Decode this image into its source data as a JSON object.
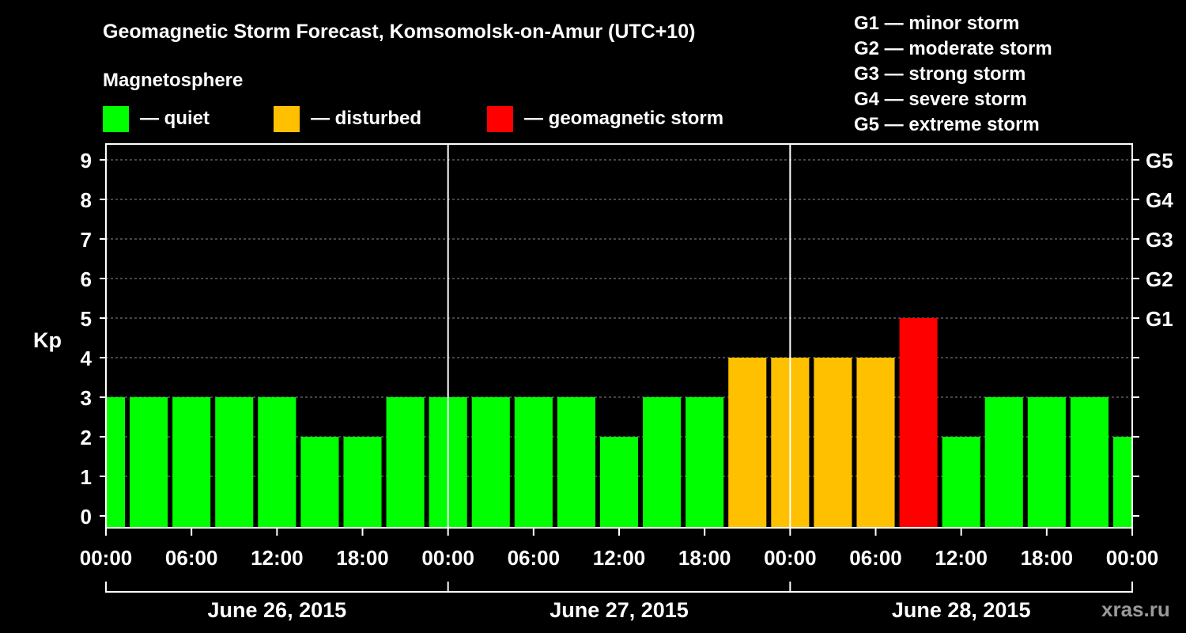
{
  "header": {
    "title": "Geomagnetic Storm Forecast, Komsomolsk-on-Amur (UTC+10)",
    "magnetosphere_label": "Magnetosphere"
  },
  "legend": [
    {
      "label": "— quiet",
      "color": "#00ff00"
    },
    {
      "label": "— disturbed",
      "color": "#ffc000"
    },
    {
      "label": "— geomagnetic storm",
      "color": "#ff0000"
    }
  ],
  "storm_scale": [
    "G1 — minor storm",
    "G2 — moderate storm",
    "G3 — strong storm",
    "G4 — severe storm",
    "G5 — extreme storm"
  ],
  "watermark": "xras.ru",
  "chart_data": {
    "type": "bar",
    "ylabel": "Kp",
    "ylim": [
      0,
      9
    ],
    "y_ticks": [
      "0",
      "1",
      "2",
      "3",
      "4",
      "5",
      "6",
      "7",
      "8",
      "9"
    ],
    "right_axis_labels": [
      {
        "kp": 5,
        "label": "G1"
      },
      {
        "kp": 6,
        "label": "G2"
      },
      {
        "kp": 7,
        "label": "G3"
      },
      {
        "kp": 8,
        "label": "G4"
      },
      {
        "kp": 9,
        "label": "G5"
      }
    ],
    "x_tick_labels": [
      "00:00",
      "06:00",
      "12:00",
      "18:00",
      "00:00",
      "06:00",
      "12:00",
      "18:00",
      "00:00",
      "06:00",
      "12:00",
      "18:00",
      "00:00"
    ],
    "days": [
      "June 26, 2015",
      "June 27, 2015",
      "June 28, 2015"
    ],
    "interval_hours": 3,
    "values": [
      3,
      3,
      3,
      3,
      3,
      2,
      2,
      3,
      3,
      3,
      3,
      3,
      2,
      3,
      3,
      4,
      4,
      4,
      4,
      5,
      2,
      3,
      3,
      3,
      2
    ],
    "status_colors": {
      "quiet": "#00ff00",
      "disturbed": "#ffc000",
      "storm": "#ff0000"
    },
    "grid": "dashed horizontal"
  }
}
